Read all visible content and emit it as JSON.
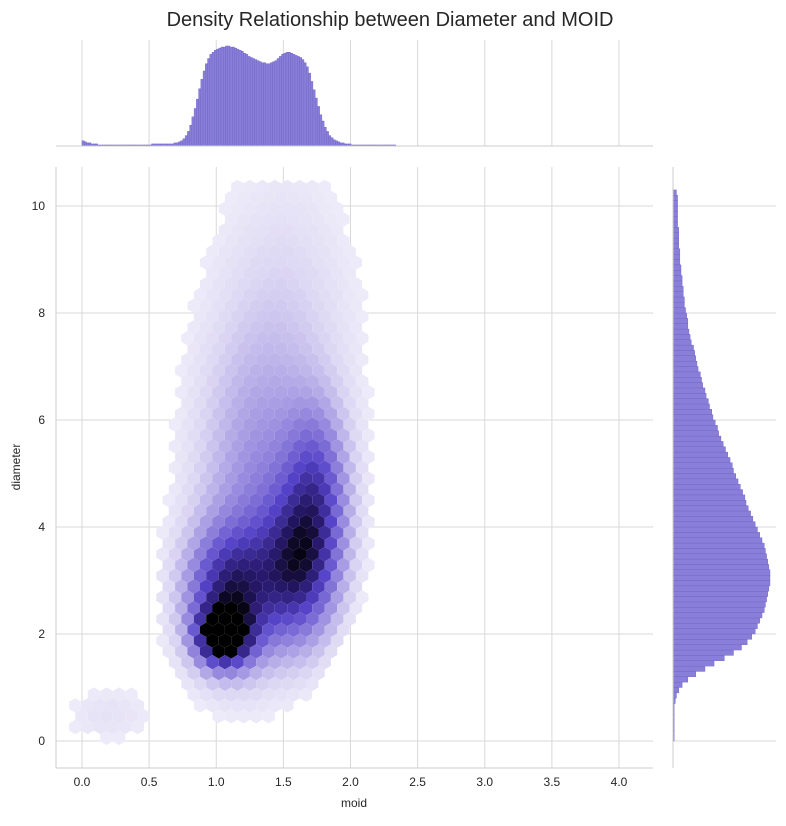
{
  "chart_data": {
    "type": "hexbin-jointplot",
    "title": "Density Relationship between Diameter and MOID",
    "xlabel": "moid",
    "ylabel": "diameter",
    "xlim": [
      -0.2,
      4.25
    ],
    "ylim": [
      -0.5,
      10.75
    ],
    "x_ticks": [
      "0.0",
      "0.5",
      "1.0",
      "1.5",
      "2.0",
      "2.5",
      "3.0",
      "3.5",
      "4.0"
    ],
    "x_tick_values": [
      0,
      0.5,
      1.0,
      1.5,
      2.0,
      2.5,
      3.0,
      3.5,
      4.0
    ],
    "y_ticks": [
      "0",
      "2",
      "4",
      "6",
      "8",
      "10"
    ],
    "y_tick_values": [
      0,
      2,
      4,
      6,
      8,
      10
    ],
    "grid": true,
    "colors": {
      "hist": "#8a7fd8",
      "hist_edge": "#6c61c6",
      "hex_low": "#f3f1fb",
      "hex_mid": "#5a48cf",
      "hex_high": "#000000",
      "grid": "#d9d9d9",
      "spine": "#cccccc"
    },
    "density_components": [
      {
        "cx": 1.05,
        "cy": 1.95,
        "sx": 0.13,
        "sy": 0.35,
        "w": 1.0
      },
      {
        "cx": 1.1,
        "cy": 2.7,
        "sx": 0.22,
        "sy": 0.85,
        "w": 0.75
      },
      {
        "cx": 1.6,
        "cy": 3.2,
        "sx": 0.2,
        "sy": 0.95,
        "w": 0.65
      },
      {
        "cx": 1.75,
        "cy": 4.6,
        "sx": 0.16,
        "sy": 1.1,
        "w": 0.5
      },
      {
        "cx": 1.3,
        "cy": 4.6,
        "sx": 0.3,
        "sy": 1.8,
        "w": 0.28
      },
      {
        "cx": 1.5,
        "cy": 7.5,
        "sx": 0.38,
        "sy": 2.2,
        "w": 0.12
      },
      {
        "cx": 0.2,
        "cy": 0.5,
        "sx": 0.25,
        "sy": 0.4,
        "w": 0.07
      }
    ],
    "x_marginal": {
      "bin_start": 0.0,
      "bin_width": 0.0167,
      "counts": [
        5,
        4,
        3,
        3,
        2,
        2,
        2,
        1,
        1,
        1,
        1,
        1,
        1,
        1,
        1,
        1,
        1,
        1,
        1,
        1,
        1,
        1,
        1,
        1,
        1,
        1,
        1,
        1,
        1,
        1,
        1,
        2,
        2,
        2,
        2,
        2,
        2,
        2,
        2,
        2,
        2,
        3,
        3,
        4,
        5,
        7,
        10,
        14,
        20,
        28,
        36,
        45,
        55,
        64,
        72,
        79,
        84,
        88,
        90,
        92,
        93,
        94,
        95,
        95,
        96,
        96,
        95,
        95,
        94,
        93,
        92,
        91,
        89,
        88,
        86,
        85,
        84,
        83,
        82,
        81,
        80,
        80,
        79,
        79,
        80,
        81,
        82,
        84,
        86,
        88,
        89,
        90,
        90,
        89,
        88,
        87,
        86,
        85,
        83,
        80,
        76,
        70,
        62,
        54,
        46,
        38,
        30,
        24,
        18,
        14,
        10,
        8,
        6,
        5,
        4,
        3,
        3,
        2,
        2,
        2,
        1,
        1,
        1,
        1,
        1,
        1,
        1,
        1,
        1,
        1,
        1,
        1,
        1,
        1,
        1,
        1,
        1,
        1,
        1,
        1
      ]
    },
    "y_marginal": {
      "bin_start": 0.0,
      "bin_width": 0.1,
      "counts": [
        1,
        1,
        1,
        1,
        1,
        1,
        1,
        2,
        3,
        5,
        8,
        13,
        20,
        28,
        36,
        45,
        53,
        60,
        65,
        69,
        72,
        74,
        76,
        78,
        80,
        81,
        82,
        83,
        84,
        85,
        85,
        85,
        84,
        83,
        82,
        81,
        80,
        78,
        76,
        74,
        72,
        70,
        68,
        66,
        64,
        63,
        61,
        59,
        57,
        55,
        53,
        52,
        50,
        48,
        46,
        44,
        42,
        40,
        39,
        37,
        35,
        34,
        32,
        31,
        29,
        28,
        26,
        25,
        24,
        22,
        21,
        20,
        19,
        18,
        16,
        15,
        14,
        13,
        13,
        12,
        11,
        10,
        10,
        9,
        9,
        8,
        8,
        7,
        7,
        6,
        6,
        6,
        5,
        5,
        5,
        5,
        4,
        4,
        4,
        4,
        4,
        4,
        3
      ]
    }
  }
}
